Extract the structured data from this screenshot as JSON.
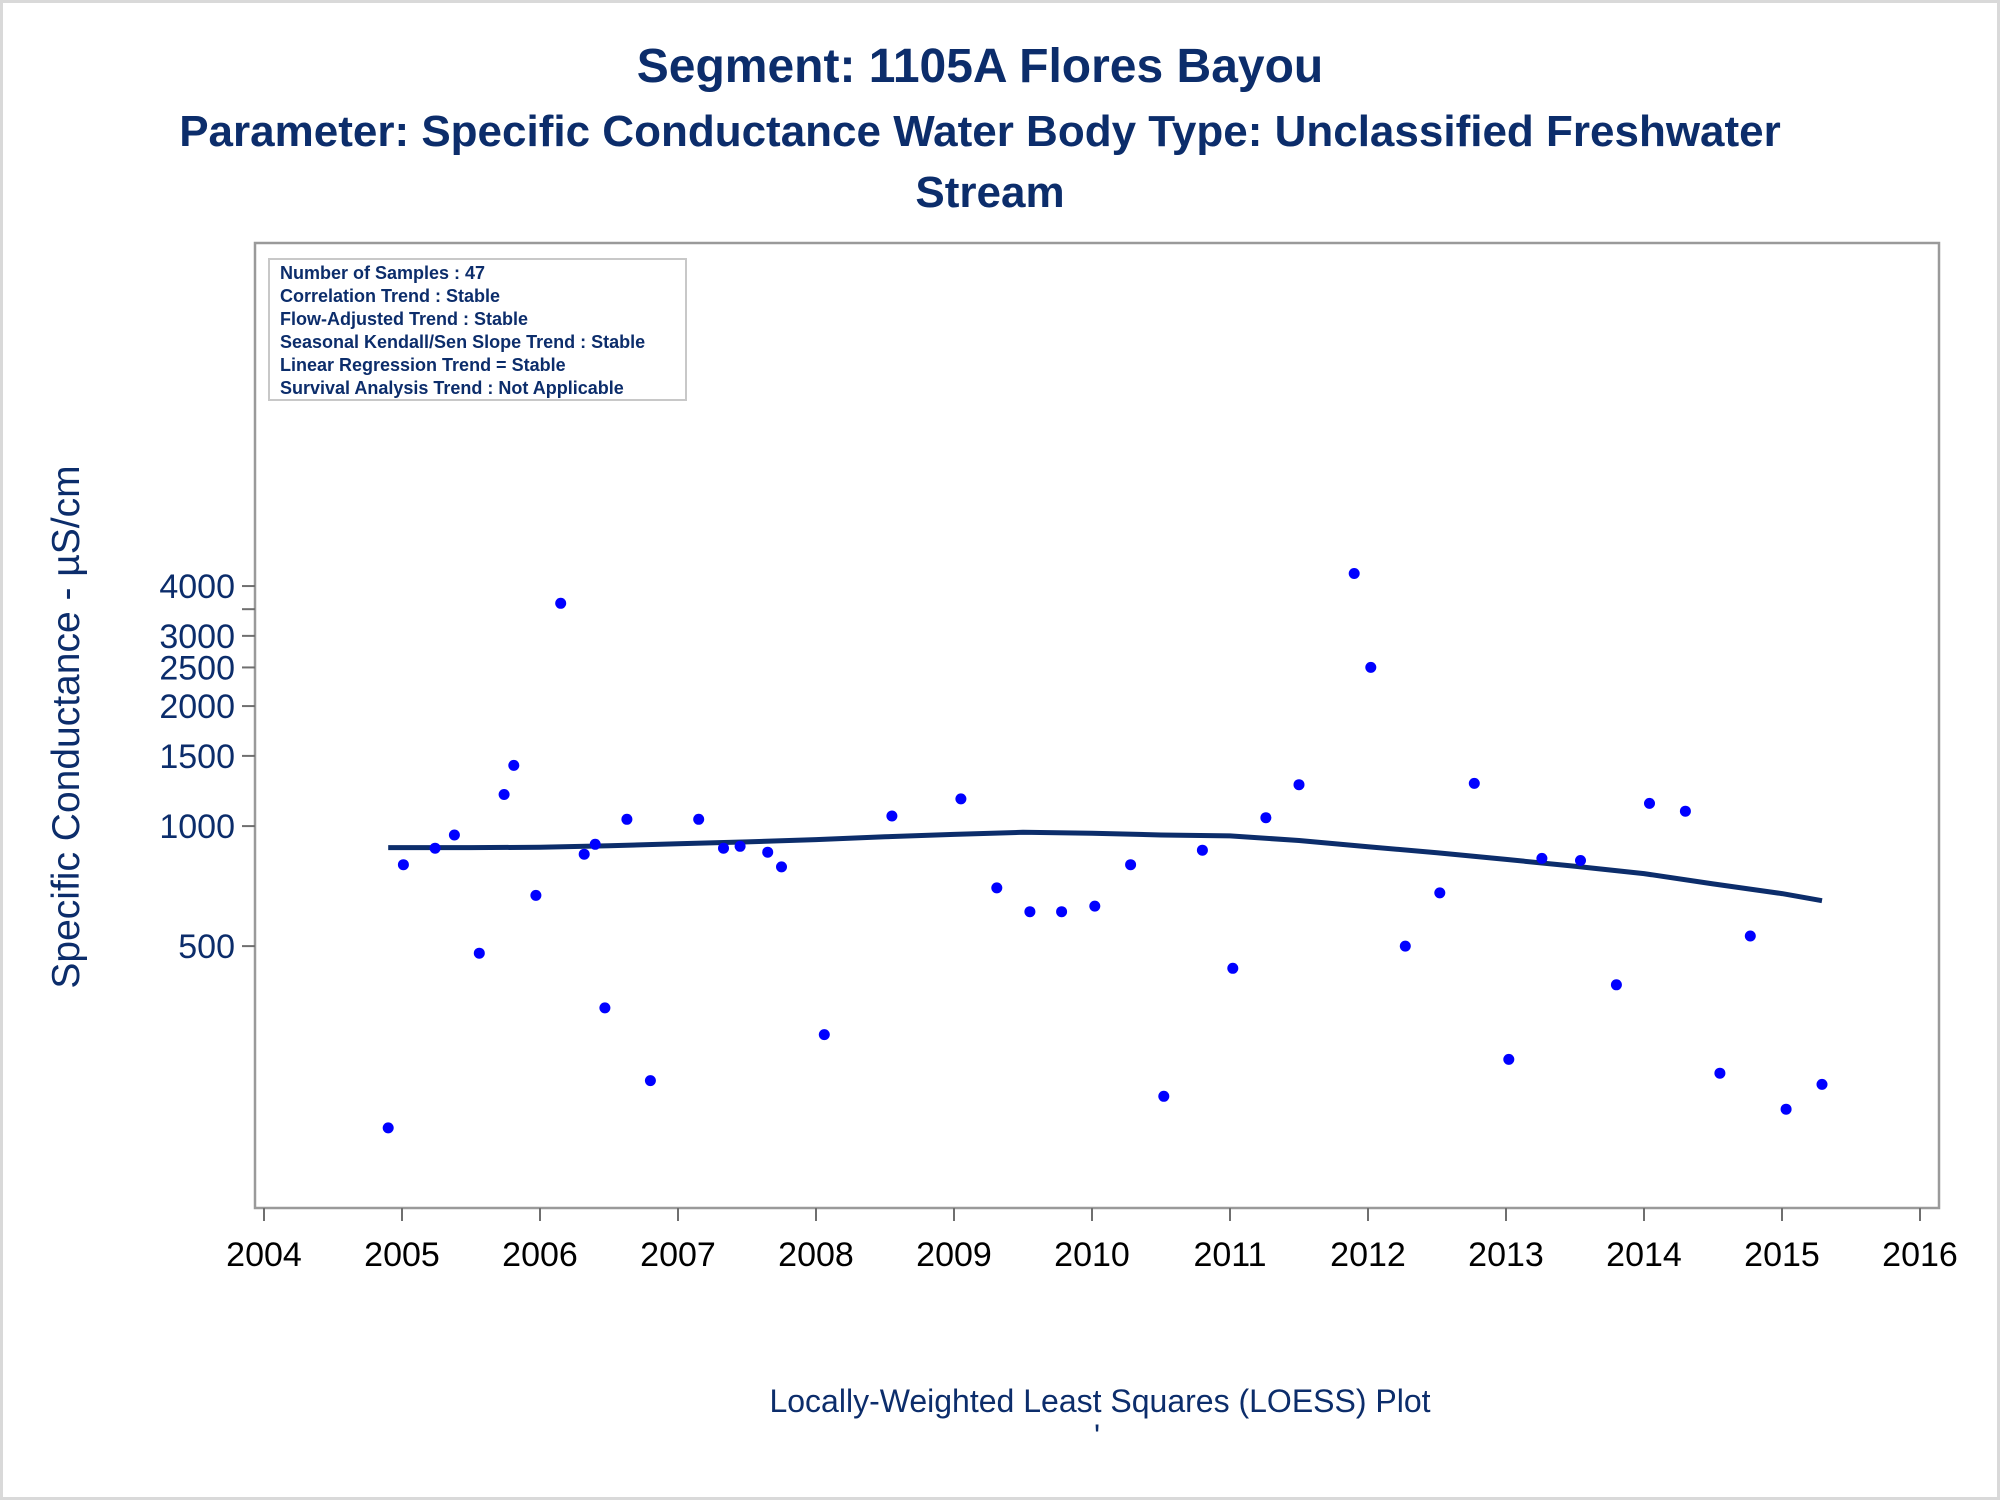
{
  "chart_data": {
    "type": "scatter",
    "title": "Segment: 1105A  Flores Bayou",
    "subtitle_line1": "Parameter: Specific Conductance   Water Body Type: Unclassified Freshwater",
    "subtitle_line2": "Stream",
    "ylabel": "Specific Conductance -  µS/cm",
    "footnote": "Locally-Weighted Least Squares (LOESS) Plot",
    "footnote_mark": "'",
    "y_scale": "log",
    "xlim": [
      2004,
      2016
    ],
    "y_ticks": [
      500,
      1000,
      1500,
      2000,
      2500,
      3000,
      4000
    ],
    "y_tick_labels": [
      "500",
      "1000",
      "1500",
      "2000",
      "2500",
      "3000",
      "4000"
    ],
    "x_ticks": [
      2004,
      2005,
      2006,
      2007,
      2008,
      2009,
      2010,
      2011,
      2012,
      2013,
      2014,
      2015,
      2016
    ],
    "x_tick_labels": [
      "2004",
      "2005",
      "2006",
      "2007",
      "2008",
      "2009",
      "2010",
      "2011",
      "2012",
      "2013",
      "2014",
      "2015",
      "2016"
    ],
    "stats_box": [
      "Number of Samples : 47",
      "Correlation Trend : Stable",
      "Flow-Adjusted Trend : Stable",
      "Seasonal Kendall/Sen Slope Trend : Stable",
      "Linear Regression Trend = Stable",
      "Survival Analysis Trend : Not Applicable"
    ],
    "series": [
      {
        "type": "scatter",
        "color": "#0000ff",
        "x": [
          2004.9,
          2005.01,
          2005.24,
          2005.38,
          2005.56,
          2005.74,
          2005.81,
          2005.97,
          2006.15,
          2006.32,
          2006.4,
          2006.47,
          2006.63,
          2006.8,
          2007.15,
          2007.33,
          2007.45,
          2007.65,
          2007.75,
          2008.06,
          2008.55,
          2009.05,
          2009.31,
          2009.55,
          2009.78,
          2010.02,
          2010.28,
          2010.52,
          2010.8,
          2011.02,
          2011.26,
          2011.5,
          2011.9,
          2012.02,
          2012.27,
          2012.52,
          2012.77,
          2013.02,
          2013.26,
          2013.54,
          2013.8,
          2014.04,
          2014.3,
          2014.55,
          2014.77,
          2015.03,
          2015.29
        ],
        "y": [
          175,
          800,
          880,
          950,
          480,
          1200,
          1420,
          670,
          3620,
          850,
          900,
          350,
          1040,
          230,
          1040,
          880,
          890,
          860,
          790,
          300,
          1060,
          1170,
          700,
          610,
          610,
          630,
          800,
          210,
          870,
          440,
          1050,
          1270,
          4300,
          2500,
          500,
          680,
          1280,
          260,
          830,
          820,
          400,
          1140,
          1090,
          240,
          530,
          195,
          225
        ]
      },
      {
        "type": "line",
        "name": "LOESS",
        "color": "#0c2d6b",
        "x": [
          2004.9,
          2005.5,
          2006.0,
          2006.5,
          2007.0,
          2007.5,
          2008.0,
          2008.5,
          2009.0,
          2009.5,
          2010.0,
          2010.5,
          2011.0,
          2011.5,
          2012.0,
          2012.5,
          2013.0,
          2013.5,
          2014.0,
          2014.5,
          2015.0,
          2015.29
        ],
        "y": [
          883,
          883,
          885,
          893,
          903,
          913,
          925,
          940,
          953,
          965,
          960,
          950,
          945,
          920,
          888,
          857,
          825,
          793,
          760,
          716,
          677,
          650
        ]
      }
    ]
  }
}
